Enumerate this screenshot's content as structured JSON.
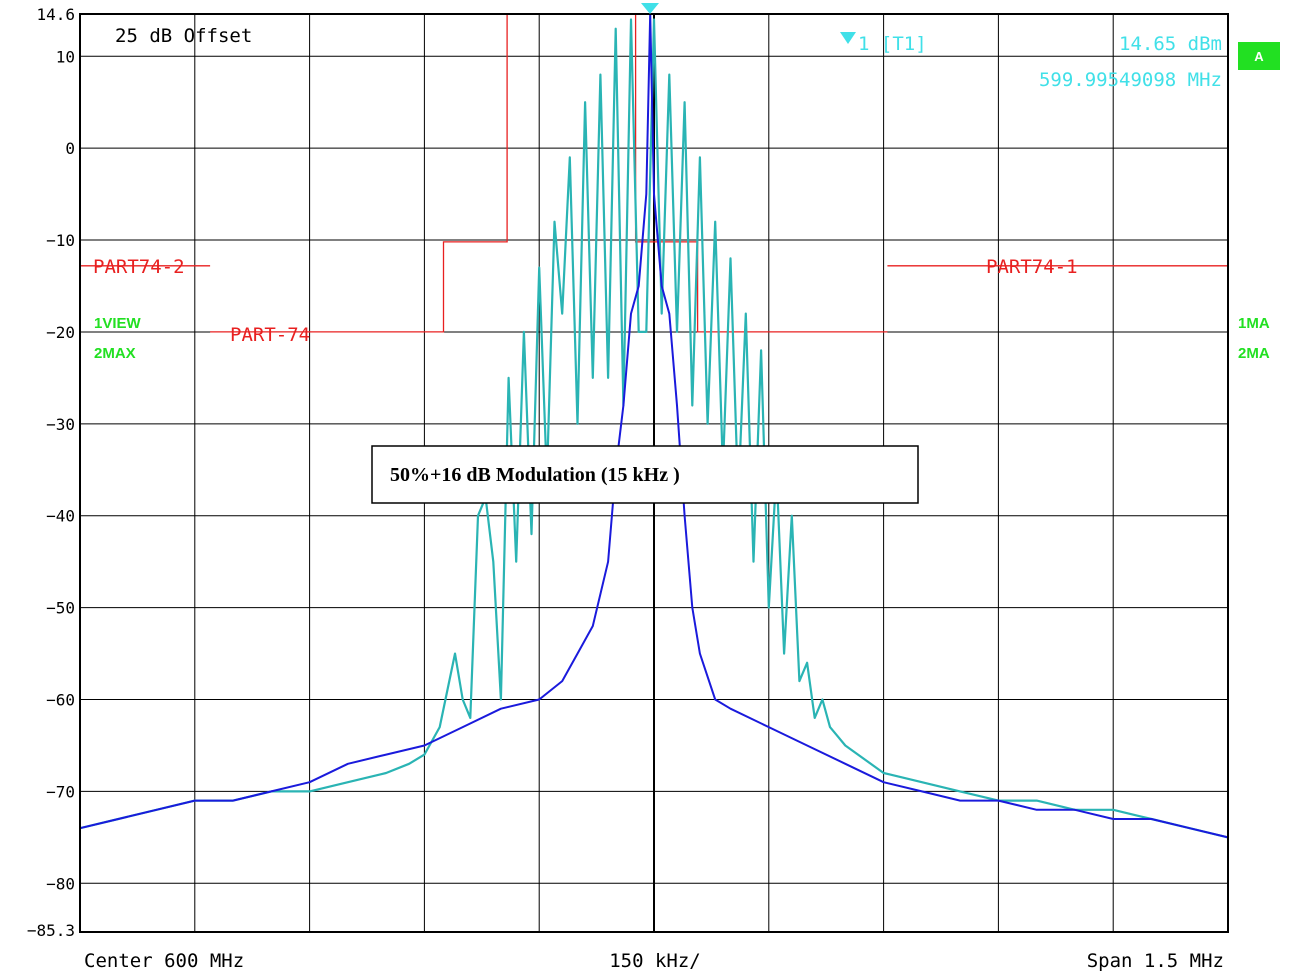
{
  "chart_data": {
    "type": "line",
    "title": "",
    "center_label": "Center 600 MHz",
    "per_div_label": "150 kHz/",
    "span_label": "Span 1.5 MHz",
    "offset_label": "25 dB Offset",
    "x_unit": "MHz",
    "xlim": [
      599.25,
      600.75
    ],
    "ylim": [
      -85.3,
      14.6
    ],
    "y_ticks": [
      {
        "value": 14.6,
        "label": "14.6"
      },
      {
        "value": 10,
        "label": "10"
      },
      {
        "value": 0,
        "label": "0"
      },
      {
        "value": -10,
        "label": "−10"
      },
      {
        "value": -20,
        "label": "−20"
      },
      {
        "value": -30,
        "label": "−30"
      },
      {
        "value": -40,
        "label": "−40"
      },
      {
        "value": -50,
        "label": "−50"
      },
      {
        "value": -60,
        "label": "−60"
      },
      {
        "value": -70,
        "label": "−70"
      },
      {
        "value": -80,
        "label": "−80"
      },
      {
        "value": -85.3,
        "label": "−85.3"
      }
    ],
    "grid": true,
    "marker": {
      "label": "1 [T1]",
      "level_text": "14.65 dBm",
      "freq_text": "599.99549098 MHz",
      "x": 599.9955,
      "y": 14.65,
      "color": "#40e0e8"
    },
    "annotation": "50%+16 dB Modulation (15 kHz )",
    "side_labels": {
      "left": [
        "1VIEW",
        "2MAX"
      ],
      "right": [
        "1MA",
        "2MA"
      ],
      "a_badge": "A"
    },
    "limit_lines": [
      {
        "name": "PART74-2",
        "color": "#e82020",
        "points": [
          [
            599.25,
            -12.8
          ]
        ]
      },
      {
        "name": "PART-74",
        "color": "#e82020",
        "points": [
          [
            599.42,
            -20
          ],
          [
            599.725,
            -20
          ],
          [
            599.725,
            -10.2
          ],
          [
            599.808,
            -10.2
          ],
          [
            599.808,
            14.6
          ],
          [
            599.976,
            14.6
          ],
          [
            599.976,
            -10.2
          ],
          [
            600.057,
            -10.2
          ],
          [
            600.057,
            -20
          ],
          [
            600.305,
            -20
          ]
        ]
      },
      {
        "name": "PART74-1",
        "color": "#e82020",
        "points": [
          [
            600.305,
            -12.8
          ],
          [
            600.75,
            -12.8
          ]
        ]
      }
    ],
    "limit_labels": [
      "PART74-2",
      "PART-74",
      "PART74-1"
    ],
    "series": [
      {
        "color": "#2ab4b4",
        "x": [
          599.25,
          599.3,
          599.35,
          599.4,
          599.45,
          599.5,
          599.55,
          599.6,
          599.65,
          599.68,
          599.7,
          599.72,
          599.74,
          599.75,
          599.76,
          599.77,
          599.78,
          599.79,
          599.8,
          599.81,
          599.82,
          599.83,
          599.84,
          599.85,
          599.86,
          599.87,
          599.88,
          599.89,
          599.9,
          599.91,
          599.92,
          599.93,
          599.94,
          599.95,
          599.96,
          599.97,
          599.98,
          599.99,
          600.0,
          600.01,
          600.02,
          600.03,
          600.04,
          600.05,
          600.06,
          600.07,
          600.08,
          600.09,
          600.1,
          600.11,
          600.12,
          600.13,
          600.14,
          600.15,
          600.16,
          600.17,
          600.18,
          600.19,
          600.2,
          600.21,
          600.22,
          600.23,
          600.24,
          600.25,
          600.3,
          600.35,
          600.4,
          600.45,
          600.5,
          600.55,
          600.6,
          600.65,
          600.7,
          600.75
        ],
        "y": [
          -74,
          -73,
          -72,
          -71,
          -71,
          -70,
          -70,
          -69,
          -68,
          -67,
          -66,
          -63,
          -55,
          -60,
          -62,
          -40,
          -38,
          -45,
          -60,
          -25,
          -45,
          -20,
          -42,
          -13,
          -36,
          -8,
          -18,
          -1,
          -30,
          5,
          -25,
          8,
          -25,
          13,
          -28,
          14,
          -20,
          -20,
          14,
          -18,
          8,
          -20,
          5,
          -28,
          -1,
          -30,
          -8,
          -35,
          -12,
          -38,
          -18,
          -45,
          -22,
          -50,
          -35,
          -55,
          -40,
          -58,
          -56,
          -62,
          -60,
          -63,
          -64,
          -65,
          -68,
          -69,
          -70,
          -71,
          -71,
          -72,
          -72,
          -73,
          -74,
          -75
        ]
      },
      {
        "color": "#1a1adc",
        "x": [
          599.25,
          599.3,
          599.35,
          599.4,
          599.45,
          599.5,
          599.55,
          599.6,
          599.65,
          599.7,
          599.75,
          599.8,
          599.85,
          599.88,
          599.9,
          599.92,
          599.94,
          599.95,
          599.96,
          599.97,
          599.98,
          599.99,
          599.995,
          600.0,
          600.01,
          600.02,
          600.03,
          600.04,
          600.05,
          600.06,
          600.08,
          600.1,
          600.15,
          600.2,
          600.25,
          600.3,
          600.35,
          600.4,
          600.45,
          600.5,
          600.55,
          600.6,
          600.65,
          600.7,
          600.75
        ],
        "y": [
          -74,
          -73,
          -72,
          -71,
          -71,
          -70,
          -69,
          -67,
          -66,
          -65,
          -63,
          -61,
          -60,
          -58,
          -55,
          -52,
          -45,
          -35,
          -28,
          -18,
          -15,
          -5,
          14.65,
          -5,
          -15,
          -18,
          -28,
          -40,
          -50,
          -55,
          -60,
          -61,
          -63,
          -65,
          -67,
          -69,
          -70,
          -71,
          -71,
          -72,
          -72,
          -73,
          -73,
          -74,
          -75
        ]
      }
    ]
  }
}
